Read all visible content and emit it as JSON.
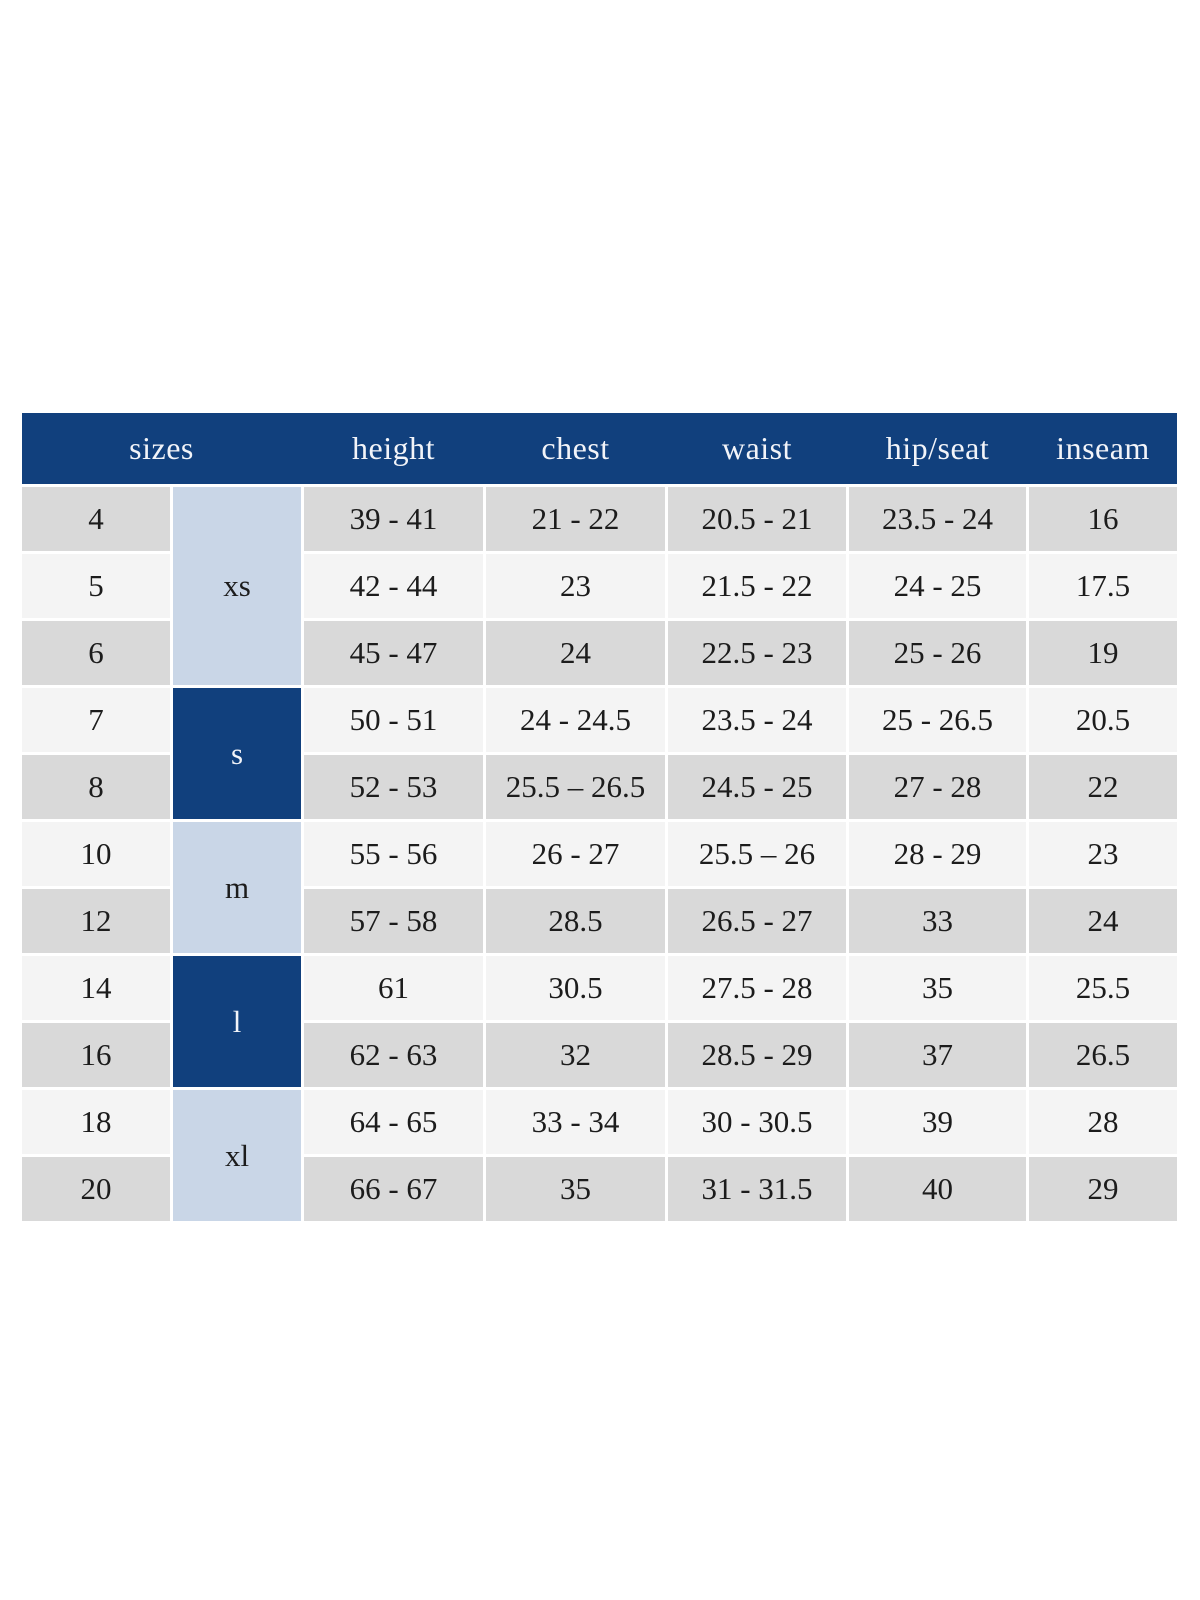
{
  "table": {
    "colors": {
      "header_bg": "#11407d",
      "header_text": "#f2f4f9",
      "group_light_bg": "#c9d6e7",
      "group_dark_bg": "#11407d",
      "row_gray": "#d9d9d9",
      "row_light": "#f4f4f4",
      "body_text": "#1c1c1c",
      "page_bg": "#ffffff"
    },
    "columns": [
      "sizes",
      "height",
      "chest",
      "waist",
      "hip/seat",
      "inseam"
    ],
    "groups": [
      {
        "label": "xs",
        "tone": "light",
        "row_span": 3
      },
      {
        "label": "s",
        "tone": "dark",
        "row_span": 2
      },
      {
        "label": "m",
        "tone": "light",
        "row_span": 2
      },
      {
        "label": "l",
        "tone": "dark",
        "row_span": 2
      },
      {
        "label": "xl",
        "tone": "light",
        "row_span": 2
      }
    ],
    "rows": [
      {
        "size": "4",
        "height": "39 - 41",
        "chest": "21 - 22",
        "waist": "20.5 - 21",
        "hip_seat": "23.5 - 24",
        "inseam": "16"
      },
      {
        "size": "5",
        "height": "42 - 44",
        "chest": "23",
        "waist": "21.5 - 22",
        "hip_seat": "24 - 25",
        "inseam": "17.5"
      },
      {
        "size": "6",
        "height": "45 - 47",
        "chest": "24",
        "waist": "22.5 - 23",
        "hip_seat": "25 - 26",
        "inseam": "19"
      },
      {
        "size": "7",
        "height": "50 - 51",
        "chest": "24 - 24.5",
        "waist": "23.5 - 24",
        "hip_seat": "25 - 26.5",
        "inseam": "20.5"
      },
      {
        "size": "8",
        "height": "52 - 53",
        "chest": "25.5 – 26.5",
        "waist": "24.5 - 25",
        "hip_seat": "27 - 28",
        "inseam": "22"
      },
      {
        "size": "10",
        "height": "55 - 56",
        "chest": "26 - 27",
        "waist": "25.5 – 26",
        "hip_seat": "28 - 29",
        "inseam": "23"
      },
      {
        "size": "12",
        "height": "57 - 58",
        "chest": "28.5",
        "waist": "26.5 - 27",
        "hip_seat": "33",
        "inseam": "24"
      },
      {
        "size": "14",
        "height": "61",
        "chest": "30.5",
        "waist": "27.5 - 28",
        "hip_seat": "35",
        "inseam": "25.5"
      },
      {
        "size": "16",
        "height": "62 - 63",
        "chest": "32",
        "waist": "28.5 - 29",
        "hip_seat": "37",
        "inseam": "26.5"
      },
      {
        "size": "18",
        "height": "64 - 65",
        "chest": "33 - 34",
        "waist": "30 - 30.5",
        "hip_seat": "39",
        "inseam": "28"
      },
      {
        "size": "20",
        "height": "66 - 67",
        "chest": "35",
        "waist": "31 - 31.5",
        "hip_seat": "40",
        "inseam": "29"
      }
    ]
  }
}
